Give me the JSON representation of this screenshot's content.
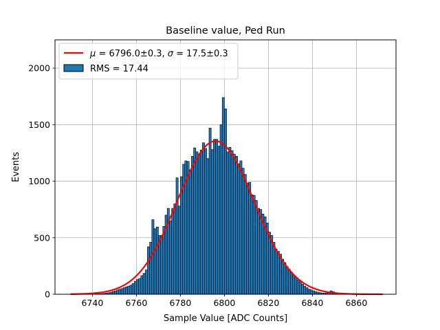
{
  "chart_data": {
    "type": "bar",
    "title": "Baseline value, Ped Run",
    "xlabel": "Sample Value [ADC Counts]",
    "ylabel": "Events",
    "xlim": [
      6723,
      6878
    ],
    "ylim": [
      0,
      2250
    ],
    "xticks": [
      6740,
      6760,
      6780,
      6800,
      6820,
      6840,
      6860
    ],
    "yticks": [
      0,
      500,
      1000,
      1500,
      2000
    ],
    "grid": true,
    "legend_position": "top-left",
    "histogram": {
      "name": "RMS = 17.44",
      "color": "#1f77b4",
      "edge_color": "#000000",
      "bin_width": 1,
      "bins": [
        [
          6730,
          0
        ],
        [
          6731,
          0
        ],
        [
          6732,
          0
        ],
        [
          6733,
          0
        ],
        [
          6734,
          0
        ],
        [
          6735,
          0
        ],
        [
          6736,
          0
        ],
        [
          6737,
          0
        ],
        [
          6738,
          0
        ],
        [
          6739,
          1
        ],
        [
          6740,
          2
        ],
        [
          6741,
          3
        ],
        [
          6742,
          3
        ],
        [
          6743,
          5
        ],
        [
          6744,
          6
        ],
        [
          6745,
          8
        ],
        [
          6746,
          10
        ],
        [
          6747,
          14
        ],
        [
          6748,
          18
        ],
        [
          6749,
          25
        ],
        [
          6750,
          30
        ],
        [
          6751,
          38
        ],
        [
          6752,
          44
        ],
        [
          6753,
          50
        ],
        [
          6754,
          58
        ],
        [
          6755,
          66
        ],
        [
          6756,
          72
        ],
        [
          6757,
          80
        ],
        [
          6758,
          95
        ],
        [
          6759,
          115
        ],
        [
          6760,
          130
        ],
        [
          6761,
          140
        ],
        [
          6762,
          165
        ],
        [
          6763,
          185
        ],
        [
          6764,
          215
        ],
        [
          6765,
          420
        ],
        [
          6766,
          460
        ],
        [
          6767,
          660
        ],
        [
          6768,
          580
        ],
        [
          6769,
          595
        ],
        [
          6770,
          520
        ],
        [
          6771,
          520
        ],
        [
          6772,
          600
        ],
        [
          6773,
          700
        ],
        [
          6774,
          760
        ],
        [
          6775,
          650
        ],
        [
          6776,
          760
        ],
        [
          6777,
          800
        ],
        [
          6778,
          1030
        ],
        [
          6779,
          780
        ],
        [
          6780,
          1040
        ],
        [
          6781,
          1150
        ],
        [
          6782,
          1180
        ],
        [
          6783,
          1175
        ],
        [
          6784,
          1100
        ],
        [
          6785,
          1220
        ],
        [
          6786,
          1295
        ],
        [
          6787,
          1260
        ],
        [
          6788,
          1240
        ],
        [
          6789,
          1275
        ],
        [
          6790,
          1340
        ],
        [
          6791,
          1290
        ],
        [
          6792,
          1200
        ],
        [
          6793,
          1470
        ],
        [
          6794,
          1280
        ],
        [
          6795,
          1370
        ],
        [
          6796,
          1370
        ],
        [
          6797,
          1310
        ],
        [
          6798,
          1500
        ],
        [
          6799,
          1740
        ],
        [
          6800,
          1640
        ],
        [
          6801,
          1260
        ],
        [
          6802,
          1300
        ],
        [
          6803,
          1270
        ],
        [
          6804,
          1240
        ],
        [
          6805,
          1220
        ],
        [
          6806,
          1155
        ],
        [
          6807,
          1180
        ],
        [
          6808,
          1115
        ],
        [
          6809,
          1060
        ],
        [
          6810,
          985
        ],
        [
          6811,
          990
        ],
        [
          6812,
          880
        ],
        [
          6813,
          875
        ],
        [
          6814,
          830
        ],
        [
          6815,
          760
        ],
        [
          6816,
          750
        ],
        [
          6817,
          710
        ],
        [
          6818,
          685
        ],
        [
          6819,
          630
        ],
        [
          6820,
          550
        ],
        [
          6821,
          520
        ],
        [
          6822,
          460
        ],
        [
          6823,
          400
        ],
        [
          6824,
          380
        ],
        [
          6825,
          355
        ],
        [
          6826,
          310
        ],
        [
          6827,
          280
        ],
        [
          6828,
          245
        ],
        [
          6829,
          220
        ],
        [
          6830,
          195
        ],
        [
          6831,
          170
        ],
        [
          6832,
          150
        ],
        [
          6833,
          125
        ],
        [
          6834,
          110
        ],
        [
          6835,
          90
        ],
        [
          6836,
          72
        ],
        [
          6837,
          58
        ],
        [
          6838,
          45
        ],
        [
          6839,
          38
        ],
        [
          6840,
          30
        ],
        [
          6841,
          24
        ],
        [
          6842,
          18
        ],
        [
          6843,
          14
        ],
        [
          6844,
          11
        ],
        [
          6845,
          10
        ],
        [
          6846,
          12
        ],
        [
          6847,
          18
        ],
        [
          6848,
          30
        ],
        [
          6849,
          22
        ],
        [
          6850,
          12
        ],
        [
          6851,
          8
        ],
        [
          6852,
          6
        ],
        [
          6853,
          4
        ],
        [
          6854,
          3
        ],
        [
          6855,
          2
        ],
        [
          6856,
          1
        ],
        [
          6857,
          1
        ],
        [
          6858,
          0
        ],
        [
          6859,
          0
        ]
      ]
    },
    "fit": {
      "name": "$\\mu = 6796.0\\pm0.3$, $\\sigma = 17.5\\pm0.3$",
      "legend_label": {
        "mu_symbol": "μ",
        "mu_text": " = 6796.0±0.3, ",
        "sigma_symbol": "σ",
        "sigma_text": " = 17.5±0.3"
      },
      "color": "#ff0000",
      "mu": 6796.0,
      "sigma": 17.5,
      "amplitude": 1355,
      "x_range": [
        6730,
        6872
      ]
    }
  }
}
